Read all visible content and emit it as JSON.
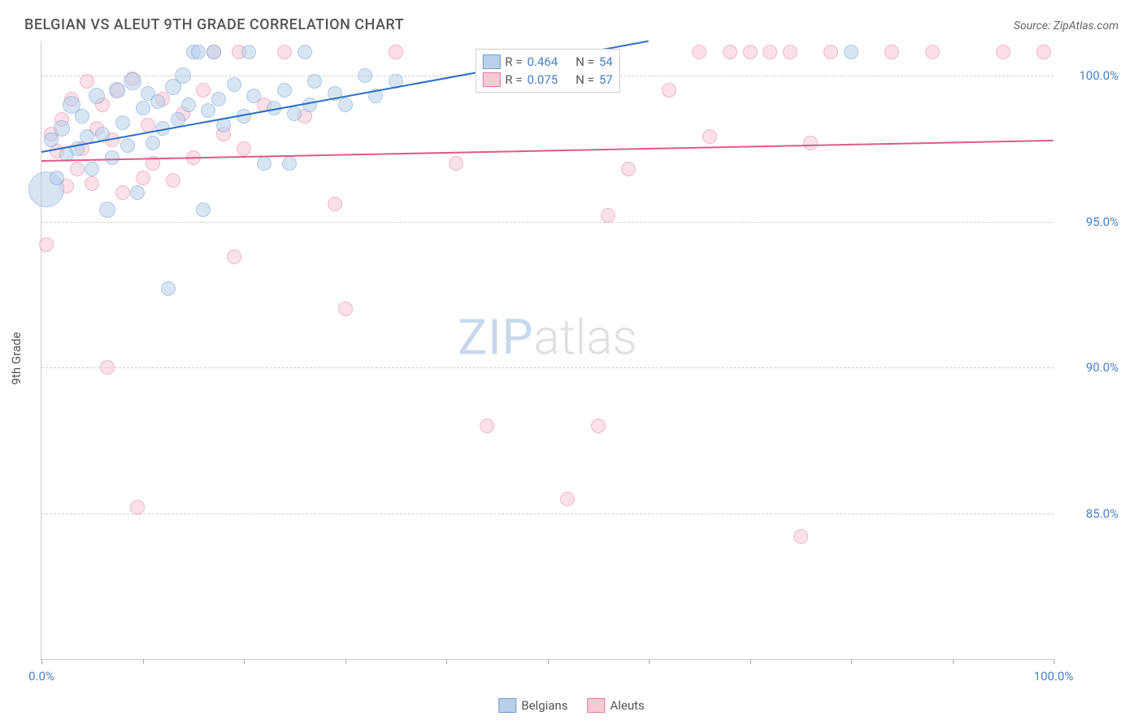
{
  "title": "BELGIAN VS ALEUT 9TH GRADE CORRELATION CHART",
  "source": "Source: ZipAtlas.com",
  "ylabel": "9th Grade",
  "watermark_a": "ZIP",
  "watermark_b": "atlas",
  "chart": {
    "type": "scatter",
    "xlim": [
      0,
      100
    ],
    "ylim": [
      80,
      101.2
    ],
    "xtick_positions": [
      0,
      10,
      20,
      30,
      40,
      50,
      60,
      70,
      80,
      90,
      100
    ],
    "xtick_labels_shown": {
      "0": "0.0%",
      "100": "100.0%"
    },
    "ytick_positions": [
      85,
      90,
      95,
      100
    ],
    "ytick_labels": [
      "85.0%",
      "90.0%",
      "95.0%",
      "100.0%"
    ],
    "background_color": "#ffffff",
    "grid_color": "#cccccc",
    "series": [
      {
        "name": "Belgians",
        "fill": "#b8d0ea",
        "stroke": "#6f9fd6",
        "fill_opacity": 0.55,
        "line_color": "#2c6fc7",
        "R": "0.464",
        "N": "54",
        "trend": {
          "x1": 0,
          "y1": 97.4,
          "x2": 60,
          "y2": 101.2
        },
        "points": [
          {
            "x": 0.5,
            "y": 96.1,
            "r": 22
          },
          {
            "x": 1,
            "y": 97.8,
            "r": 9
          },
          {
            "x": 1.5,
            "y": 96.5,
            "r": 9
          },
          {
            "x": 2,
            "y": 98.2,
            "r": 10
          },
          {
            "x": 2.5,
            "y": 97.3,
            "r": 9
          },
          {
            "x": 3,
            "y": 99.0,
            "r": 11
          },
          {
            "x": 3.5,
            "y": 97.5,
            "r": 9
          },
          {
            "x": 4,
            "y": 98.6,
            "r": 9
          },
          {
            "x": 4.5,
            "y": 97.9,
            "r": 9
          },
          {
            "x": 5,
            "y": 96.8,
            "r": 9
          },
          {
            "x": 5.5,
            "y": 99.3,
            "r": 10
          },
          {
            "x": 6,
            "y": 98.0,
            "r": 9
          },
          {
            "x": 6.5,
            "y": 95.4,
            "r": 10
          },
          {
            "x": 7,
            "y": 97.2,
            "r": 9
          },
          {
            "x": 7.5,
            "y": 99.5,
            "r": 10
          },
          {
            "x": 8,
            "y": 98.4,
            "r": 9
          },
          {
            "x": 8.5,
            "y": 97.6,
            "r": 9
          },
          {
            "x": 9,
            "y": 99.8,
            "r": 11
          },
          {
            "x": 9.5,
            "y": 96.0,
            "r": 9
          },
          {
            "x": 10,
            "y": 98.9,
            "r": 9
          },
          {
            "x": 10.5,
            "y": 99.4,
            "r": 9
          },
          {
            "x": 11,
            "y": 97.7,
            "r": 9
          },
          {
            "x": 11.5,
            "y": 99.1,
            "r": 9
          },
          {
            "x": 12,
            "y": 98.2,
            "r": 9
          },
          {
            "x": 12.5,
            "y": 92.7,
            "r": 9
          },
          {
            "x": 13,
            "y": 99.6,
            "r": 10
          },
          {
            "x": 13.5,
            "y": 98.5,
            "r": 9
          },
          {
            "x": 14,
            "y": 100.0,
            "r": 10
          },
          {
            "x": 14.5,
            "y": 99.0,
            "r": 9
          },
          {
            "x": 15,
            "y": 100.8,
            "r": 9
          },
          {
            "x": 15.5,
            "y": 100.8,
            "r": 9
          },
          {
            "x": 16,
            "y": 95.4,
            "r": 9
          },
          {
            "x": 16.5,
            "y": 98.8,
            "r": 9
          },
          {
            "x": 17,
            "y": 100.8,
            "r": 9
          },
          {
            "x": 17.5,
            "y": 99.2,
            "r": 9
          },
          {
            "x": 18,
            "y": 98.3,
            "r": 9
          },
          {
            "x": 19,
            "y": 99.7,
            "r": 9
          },
          {
            "x": 20,
            "y": 98.6,
            "r": 9
          },
          {
            "x": 20.5,
            "y": 100.8,
            "r": 9
          },
          {
            "x": 21,
            "y": 99.3,
            "r": 9
          },
          {
            "x": 22,
            "y": 97.0,
            "r": 9
          },
          {
            "x": 23,
            "y": 98.9,
            "r": 9
          },
          {
            "x": 24,
            "y": 99.5,
            "r": 9
          },
          {
            "x": 24.5,
            "y": 97.0,
            "r": 9
          },
          {
            "x": 25,
            "y": 98.7,
            "r": 9
          },
          {
            "x": 26,
            "y": 100.8,
            "r": 9
          },
          {
            "x": 26.5,
            "y": 99.0,
            "r": 9
          },
          {
            "x": 27,
            "y": 99.8,
            "r": 9
          },
          {
            "x": 29,
            "y": 99.4,
            "r": 9
          },
          {
            "x": 30,
            "y": 99.0,
            "r": 9
          },
          {
            "x": 32,
            "y": 100.0,
            "r": 9
          },
          {
            "x": 33,
            "y": 99.3,
            "r": 9
          },
          {
            "x": 35,
            "y": 99.8,
            "r": 9
          },
          {
            "x": 80,
            "y": 100.8,
            "r": 9
          }
        ]
      },
      {
        "name": "Aleuts",
        "fill": "#f6c9d5",
        "stroke": "#e17fa1",
        "fill_opacity": 0.55,
        "line_color": "#e05a88",
        "R": "0.075",
        "N": "57",
        "trend": {
          "x1": 0,
          "y1": 97.1,
          "x2": 100,
          "y2": 97.8
        },
        "points": [
          {
            "x": 0.5,
            "y": 94.2,
            "r": 9
          },
          {
            "x": 1,
            "y": 98.0,
            "r": 9
          },
          {
            "x": 1.5,
            "y": 97.4,
            "r": 9
          },
          {
            "x": 2,
            "y": 98.5,
            "r": 9
          },
          {
            "x": 2.5,
            "y": 96.2,
            "r": 9
          },
          {
            "x": 3,
            "y": 99.2,
            "r": 9
          },
          {
            "x": 3.5,
            "y": 96.8,
            "r": 9
          },
          {
            "x": 4,
            "y": 97.5,
            "r": 9
          },
          {
            "x": 4.5,
            "y": 99.8,
            "r": 9
          },
          {
            "x": 5,
            "y": 96.3,
            "r": 9
          },
          {
            "x": 5.5,
            "y": 98.2,
            "r": 9
          },
          {
            "x": 6,
            "y": 99.0,
            "r": 9
          },
          {
            "x": 6.5,
            "y": 90.0,
            "r": 9
          },
          {
            "x": 7,
            "y": 97.8,
            "r": 9
          },
          {
            "x": 7.5,
            "y": 99.5,
            "r": 9
          },
          {
            "x": 8,
            "y": 96.0,
            "r": 9
          },
          {
            "x": 9,
            "y": 99.9,
            "r": 9
          },
          {
            "x": 9.5,
            "y": 85.2,
            "r": 9
          },
          {
            "x": 10,
            "y": 96.5,
            "r": 9
          },
          {
            "x": 10.5,
            "y": 98.3,
            "r": 9
          },
          {
            "x": 11,
            "y": 97.0,
            "r": 9
          },
          {
            "x": 12,
            "y": 99.2,
            "r": 9
          },
          {
            "x": 13,
            "y": 96.4,
            "r": 9
          },
          {
            "x": 14,
            "y": 98.7,
            "r": 9
          },
          {
            "x": 15,
            "y": 97.2,
            "r": 9
          },
          {
            "x": 16,
            "y": 99.5,
            "r": 9
          },
          {
            "x": 17,
            "y": 100.8,
            "r": 9
          },
          {
            "x": 18,
            "y": 98.0,
            "r": 9
          },
          {
            "x": 19,
            "y": 93.8,
            "r": 9
          },
          {
            "x": 19.5,
            "y": 100.8,
            "r": 9
          },
          {
            "x": 20,
            "y": 97.5,
            "r": 9
          },
          {
            "x": 22,
            "y": 99.0,
            "r": 9
          },
          {
            "x": 24,
            "y": 100.8,
            "r": 9
          },
          {
            "x": 26,
            "y": 98.6,
            "r": 9
          },
          {
            "x": 29,
            "y": 95.6,
            "r": 9
          },
          {
            "x": 30,
            "y": 92.0,
            "r": 9
          },
          {
            "x": 35,
            "y": 100.8,
            "r": 9
          },
          {
            "x": 41,
            "y": 97.0,
            "r": 9
          },
          {
            "x": 44,
            "y": 88.0,
            "r": 9
          },
          {
            "x": 52,
            "y": 85.5,
            "r": 9
          },
          {
            "x": 55,
            "y": 88.0,
            "r": 9
          },
          {
            "x": 56,
            "y": 95.2,
            "r": 9
          },
          {
            "x": 58,
            "y": 96.8,
            "r": 9
          },
          {
            "x": 62,
            "y": 99.5,
            "r": 9
          },
          {
            "x": 65,
            "y": 100.8,
            "r": 9
          },
          {
            "x": 66,
            "y": 97.9,
            "r": 9
          },
          {
            "x": 68,
            "y": 100.8,
            "r": 9
          },
          {
            "x": 70,
            "y": 100.8,
            "r": 9
          },
          {
            "x": 72,
            "y": 100.8,
            "r": 9
          },
          {
            "x": 74,
            "y": 100.8,
            "r": 9
          },
          {
            "x": 75,
            "y": 84.2,
            "r": 9
          },
          {
            "x": 76,
            "y": 97.7,
            "r": 9
          },
          {
            "x": 78,
            "y": 100.8,
            "r": 9
          },
          {
            "x": 84,
            "y": 100.8,
            "r": 9
          },
          {
            "x": 88,
            "y": 100.8,
            "r": 9
          },
          {
            "x": 95,
            "y": 100.8,
            "r": 9
          },
          {
            "x": 99,
            "y": 100.8,
            "r": 9
          }
        ]
      }
    ]
  },
  "legend_top_labels": {
    "R": "R =",
    "N": "N ="
  }
}
